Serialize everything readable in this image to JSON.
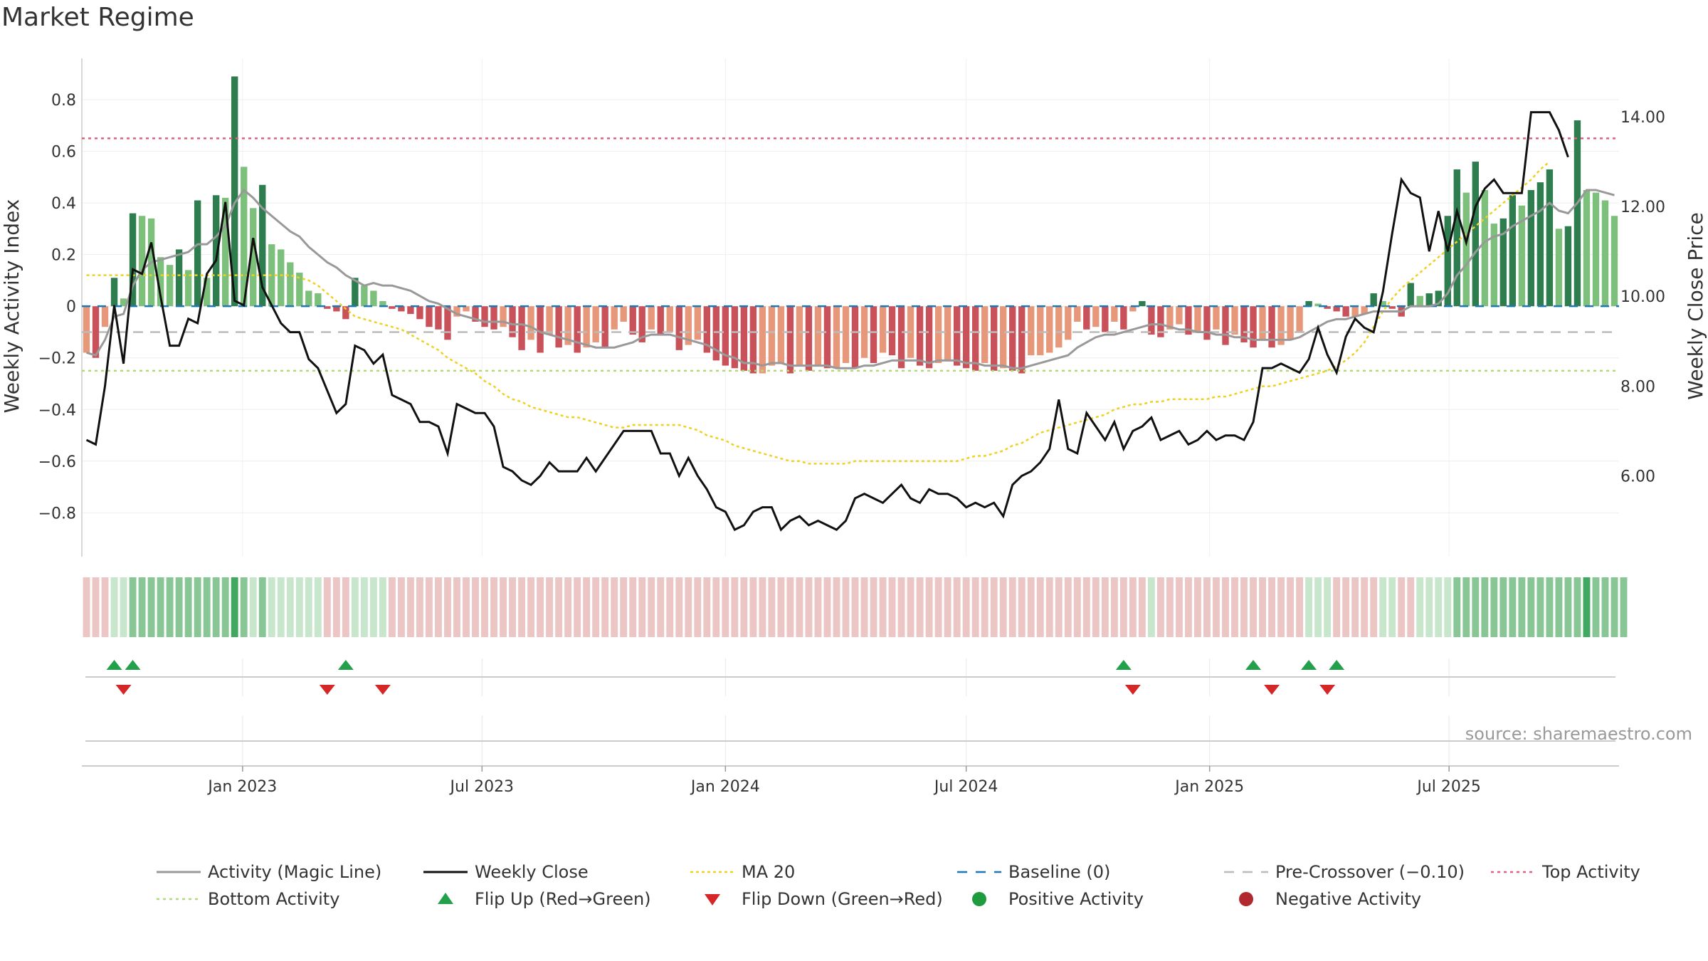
{
  "title": "Market Regime",
  "source": "source: sharemaestro.com",
  "colors": {
    "strong_green": "#2e7d4f",
    "light_green": "#7cc07c",
    "strong_red": "#c9525a",
    "light_red": "#e8987a",
    "magic_line": "#999999",
    "weekly_close": "#111111",
    "ma20": "#f0d020",
    "baseline": "#1f77b4",
    "pre_crossover": "#bbbbbb",
    "top_activity": "#e06080",
    "bottom_activity": "#b5d97a",
    "flip_up": "#22a04a",
    "flip_down": "#d62728",
    "positive": "#1e9b3c",
    "negative": "#b2282f"
  },
  "chart_data": {
    "type": "bar",
    "x_start": "2022-09-05",
    "x_interval": "weekly",
    "x_ticks": [
      "Jan 2023",
      "Jul 2023",
      "Jan 2024",
      "Jul 2024",
      "Jan 2025",
      "Jul 2025"
    ],
    "ylabel": "Weekly Activity Index",
    "y2label": "Weekly Close Price",
    "ylim": [
      -0.97,
      0.96
    ],
    "y_ticks": [
      0.8,
      0.6,
      0.4,
      0.2,
      0,
      -0.2,
      -0.4,
      -0.6,
      -0.8
    ],
    "y_tick_labels": [
      "0.8",
      "0.6",
      "0.4",
      "0.2",
      "0",
      "−0.2",
      "−0.4",
      "−0.6",
      "−0.8"
    ],
    "y2lim": [
      4.2,
      15.3
    ],
    "y2_ticks": [
      14,
      12,
      10,
      8,
      6
    ],
    "y2_tick_labels": [
      "14.00",
      "12.00",
      "10.00",
      "8.00",
      "6.00"
    ],
    "reference_lines": {
      "baseline": 0,
      "pre_crossover": -0.1,
      "top_activity": 0.65,
      "bottom_activity": -0.25
    },
    "activity": [
      -0.18,
      -0.2,
      -0.08,
      0.11,
      0.03,
      0.36,
      0.35,
      0.34,
      0.19,
      0.16,
      0.22,
      0.14,
      0.41,
      0.11,
      0.43,
      0.42,
      0.89,
      0.54,
      0.38,
      0.47,
      0.24,
      0.22,
      0.17,
      0.13,
      0.06,
      0.05,
      -0.01,
      -0.02,
      -0.05,
      0.11,
      0.08,
      0.06,
      0.02,
      -0.01,
      -0.02,
      -0.03,
      -0.05,
      -0.08,
      -0.09,
      -0.13,
      -0.04,
      -0.02,
      -0.06,
      -0.08,
      -0.09,
      -0.08,
      -0.12,
      -0.17,
      -0.13,
      -0.18,
      -0.11,
      -0.16,
      -0.15,
      -0.18,
      -0.16,
      -0.14,
      -0.16,
      -0.09,
      -0.06,
      -0.11,
      -0.14,
      -0.09,
      -0.11,
      -0.1,
      -0.17,
      -0.15,
      -0.13,
      -0.18,
      -0.21,
      -0.23,
      -0.24,
      -0.25,
      -0.26,
      -0.26,
      -0.23,
      -0.22,
      -0.26,
      -0.23,
      -0.25,
      -0.23,
      -0.24,
      -0.24,
      -0.22,
      -0.24,
      -0.2,
      -0.22,
      -0.18,
      -0.19,
      -0.24,
      -0.2,
      -0.23,
      -0.24,
      -0.22,
      -0.21,
      -0.23,
      -0.24,
      -0.25,
      -0.22,
      -0.25,
      -0.24,
      -0.25,
      -0.26,
      -0.19,
      -0.19,
      -0.18,
      -0.16,
      -0.13,
      -0.06,
      -0.09,
      -0.08,
      -0.1,
      -0.06,
      -0.09,
      -0.02,
      0.02,
      -0.11,
      -0.12,
      -0.09,
      -0.07,
      -0.11,
      -0.1,
      -0.13,
      -0.09,
      -0.15,
      -0.11,
      -0.14,
      -0.16,
      -0.13,
      -0.16,
      -0.15,
      -0.13,
      -0.1,
      0.02,
      0.01,
      -0.01,
      -0.02,
      -0.04,
      -0.04,
      -0.03,
      0.05,
      0.02,
      -0.01,
      -0.04,
      0.09,
      0.04,
      0.05,
      0.06,
      0.35,
      0.53,
      0.44,
      0.56,
      0.45,
      0.32,
      0.34,
      0.43,
      0.39,
      0.45,
      0.48,
      0.53,
      0.3,
      0.31,
      0.72,
      0.45,
      0.44,
      0.41,
      0.35
    ],
    "close": [
      6.8,
      6.7,
      8.0,
      9.8,
      8.5,
      10.6,
      10.5,
      11.2,
      10.0,
      8.9,
      8.9,
      9.5,
      9.4,
      10.5,
      10.8,
      12.1,
      9.9,
      9.8,
      11.3,
      10.2,
      9.8,
      9.4,
      9.2,
      9.2,
      8.6,
      8.4,
      7.9,
      7.4,
      7.6,
      8.9,
      8.8,
      8.5,
      8.7,
      7.8,
      7.7,
      7.6,
      7.2,
      7.2,
      7.1,
      6.5,
      7.6,
      7.5,
      7.4,
      7.4,
      7.1,
      6.2,
      6.1,
      5.9,
      5.8,
      6.0,
      6.3,
      6.1,
      6.1,
      6.1,
      6.4,
      6.1,
      6.4,
      6.7,
      7.0,
      7.0,
      7.0,
      7.0,
      6.5,
      6.5,
      6.0,
      6.4,
      6.0,
      5.7,
      5.3,
      5.2,
      4.8,
      4.9,
      5.2,
      5.3,
      5.3,
      4.8,
      5.0,
      5.1,
      4.9,
      5.0,
      4.9,
      4.8,
      5.0,
      5.5,
      5.6,
      5.5,
      5.4,
      5.6,
      5.8,
      5.5,
      5.4,
      5.7,
      5.6,
      5.6,
      5.5,
      5.3,
      5.4,
      5.3,
      5.4,
      5.1,
      5.8,
      6.0,
      6.1,
      6.3,
      6.6,
      7.7,
      6.6,
      6.5,
      7.4,
      7.1,
      6.8,
      7.2,
      6.6,
      7.0,
      7.1,
      7.3,
      6.8,
      6.9,
      7.0,
      6.7,
      6.8,
      7.0,
      6.8,
      6.9,
      6.9,
      6.8,
      7.2,
      8.4,
      8.4,
      8.5,
      8.4,
      8.3,
      8.6,
      9.3,
      8.7,
      8.3,
      9.1,
      9.5,
      9.3,
      9.2,
      10.1,
      11.4,
      12.6,
      12.3,
      12.2,
      11.0,
      11.9,
      11.0,
      11.9,
      11.2,
      12.0,
      12.4,
      12.6,
      12.3,
      12.3,
      12.3,
      14.1,
      14.1,
      14.1,
      13.7,
      13.1
    ],
    "magic_line": [
      -0.18,
      -0.19,
      -0.13,
      -0.04,
      -0.03,
      0.08,
      0.14,
      0.17,
      0.18,
      0.19,
      0.2,
      0.21,
      0.24,
      0.24,
      0.27,
      0.31,
      0.4,
      0.45,
      0.42,
      0.38,
      0.35,
      0.32,
      0.29,
      0.27,
      0.23,
      0.2,
      0.17,
      0.15,
      0.12,
      0.1,
      0.08,
      0.09,
      0.08,
      0.08,
      0.07,
      0.06,
      0.04,
      0.02,
      0.01,
      -0.01,
      -0.03,
      -0.04,
      -0.05,
      -0.06,
      -0.06,
      -0.06,
      -0.07,
      -0.07,
      -0.08,
      -0.1,
      -0.11,
      -0.12,
      -0.13,
      -0.14,
      -0.15,
      -0.16,
      -0.16,
      -0.16,
      -0.15,
      -0.14,
      -0.12,
      -0.11,
      -0.11,
      -0.11,
      -0.12,
      -0.13,
      -0.14,
      -0.15,
      -0.17,
      -0.19,
      -0.2,
      -0.22,
      -0.22,
      -0.23,
      -0.22,
      -0.22,
      -0.23,
      -0.23,
      -0.23,
      -0.23,
      -0.23,
      -0.24,
      -0.24,
      -0.24,
      -0.23,
      -0.23,
      -0.22,
      -0.21,
      -0.21,
      -0.21,
      -0.21,
      -0.22,
      -0.21,
      -0.21,
      -0.21,
      -0.22,
      -0.22,
      -0.23,
      -0.23,
      -0.23,
      -0.24,
      -0.24,
      -0.23,
      -0.22,
      -0.21,
      -0.2,
      -0.19,
      -0.16,
      -0.14,
      -0.12,
      -0.11,
      -0.11,
      -0.1,
      -0.09,
      -0.08,
      -0.07,
      -0.07,
      -0.08,
      -0.09,
      -0.09,
      -0.1,
      -0.1,
      -0.11,
      -0.11,
      -0.12,
      -0.12,
      -0.13,
      -0.13,
      -0.13,
      -0.13,
      -0.13,
      -0.12,
      -0.1,
      -0.08,
      -0.06,
      -0.05,
      -0.05,
      -0.04,
      -0.03,
      -0.02,
      -0.02,
      -0.02,
      -0.02,
      0.0,
      0.0,
      0.0,
      0.01,
      0.05,
      0.12,
      0.16,
      0.21,
      0.25,
      0.27,
      0.28,
      0.31,
      0.33,
      0.35,
      0.37,
      0.4,
      0.37,
      0.36,
      0.4,
      0.45,
      0.45,
      0.44,
      0.43
    ],
    "ma20": [
      0.12,
      0.12,
      0.12,
      0.12,
      0.12,
      0.12,
      0.12,
      0.12,
      0.12,
      0.12,
      0.12,
      0.12,
      0.12,
      0.12,
      0.12,
      0.12,
      0.12,
      0.12,
      0.12,
      0.12,
      0.12,
      0.12,
      0.12,
      0.11,
      0.1,
      0.08,
      0.05,
      0.02,
      -0.01,
      -0.04,
      -0.05,
      -0.06,
      -0.07,
      -0.08,
      -0.09,
      -0.11,
      -0.13,
      -0.15,
      -0.17,
      -0.2,
      -0.22,
      -0.24,
      -0.26,
      -0.29,
      -0.31,
      -0.34,
      -0.36,
      -0.37,
      -0.39,
      -0.4,
      -0.41,
      -0.42,
      -0.43,
      -0.43,
      -0.44,
      -0.45,
      -0.46,
      -0.47,
      -0.47,
      -0.46,
      -0.46,
      -0.46,
      -0.46,
      -0.46,
      -0.46,
      -0.47,
      -0.48,
      -0.5,
      -0.51,
      -0.52,
      -0.54,
      -0.55,
      -0.56,
      -0.57,
      -0.58,
      -0.59,
      -0.6,
      -0.6,
      -0.61,
      -0.61,
      -0.61,
      -0.61,
      -0.61,
      -0.6,
      -0.6,
      -0.6,
      -0.6,
      -0.6,
      -0.6,
      -0.6,
      -0.6,
      -0.6,
      -0.6,
      -0.6,
      -0.6,
      -0.59,
      -0.58,
      -0.58,
      -0.57,
      -0.56,
      -0.54,
      -0.53,
      -0.51,
      -0.49,
      -0.48,
      -0.47,
      -0.46,
      -0.45,
      -0.44,
      -0.43,
      -0.42,
      -0.4,
      -0.39,
      -0.38,
      -0.38,
      -0.37,
      -0.37,
      -0.36,
      -0.36,
      -0.36,
      -0.36,
      -0.36,
      -0.35,
      -0.35,
      -0.34,
      -0.33,
      -0.32,
      -0.31,
      -0.31,
      -0.3,
      -0.29,
      -0.28,
      -0.27,
      -0.26,
      -0.25,
      -0.23,
      -0.21,
      -0.18,
      -0.14,
      -0.08,
      -0.02,
      0.03,
      0.07,
      0.1,
      0.13,
      0.16,
      0.19,
      0.22,
      0.25,
      0.28,
      0.31,
      0.34,
      0.37,
      0.4,
      0.43,
      0.46,
      0.49,
      0.53,
      0.56
    ],
    "regime_strip": [
      -1,
      -1,
      -1,
      1,
      1,
      2,
      2,
      2,
      2,
      2,
      2,
      2,
      2,
      2,
      2,
      2,
      3,
      2,
      1,
      2,
      1,
      1,
      1,
      1,
      1,
      1,
      -1,
      -1,
      -1,
      1,
      1,
      1,
      1,
      -1,
      -1,
      -1,
      -1,
      -1,
      -1,
      -1,
      -1,
      -1,
      -1,
      -1,
      -1,
      -1,
      -1,
      -1,
      -1,
      -1,
      -1,
      -1,
      -1,
      -1,
      -1,
      -1,
      -1,
      -1,
      -1,
      -1,
      -1,
      -1,
      -1,
      -1,
      -1,
      -1,
      -1,
      -1,
      -1,
      -1,
      -1,
      -1,
      -1,
      -1,
      -1,
      -1,
      -1,
      -1,
      -1,
      -1,
      -1,
      -1,
      -1,
      -1,
      -1,
      -1,
      -1,
      -1,
      -1,
      -1,
      -1,
      -1,
      -1,
      -1,
      -1,
      -1,
      -1,
      -1,
      -1,
      -1,
      -1,
      -1,
      -1,
      -1,
      -1,
      -1,
      -1,
      -1,
      -1,
      -1,
      -1,
      -1,
      -1,
      -1,
      -1,
      1,
      -1,
      -1,
      -1,
      -1,
      -1,
      -1,
      -1,
      -1,
      -1,
      -1,
      -1,
      -1,
      -1,
      -1,
      -1,
      -1,
      1,
      1,
      1,
      -1,
      -1,
      -1,
      -1,
      -1,
      1,
      1,
      -1,
      -1,
      1,
      1,
      1,
      1,
      2,
      2,
      2,
      2,
      2,
      2,
      2,
      2,
      2,
      2,
      2,
      2,
      2,
      2,
      3,
      2,
      2,
      2,
      2
    ],
    "flip_up_weeks": [
      3,
      5,
      28,
      112,
      126,
      132,
      135
    ],
    "flip_down_weeks": [
      4,
      26,
      32,
      113,
      128,
      134
    ],
    "legend": [
      {
        "key": "magic",
        "label": "Activity (Magic Line)"
      },
      {
        "key": "close",
        "label": "Weekly Close"
      },
      {
        "key": "ma20",
        "label": "MA 20"
      },
      {
        "key": "baseline",
        "label": "Baseline (0)"
      },
      {
        "key": "pre",
        "label": "Pre-Crossover (−0.10)"
      },
      {
        "key": "top",
        "label": "Top Activity"
      },
      {
        "key": "bottom",
        "label": "Bottom Activity"
      },
      {
        "key": "flipup",
        "label": "Flip Up (Red→Green)"
      },
      {
        "key": "flipdown",
        "label": "Flip Down (Green→Red)"
      },
      {
        "key": "pos",
        "label": "Positive Activity"
      },
      {
        "key": "neg",
        "label": "Negative Activity"
      }
    ]
  }
}
